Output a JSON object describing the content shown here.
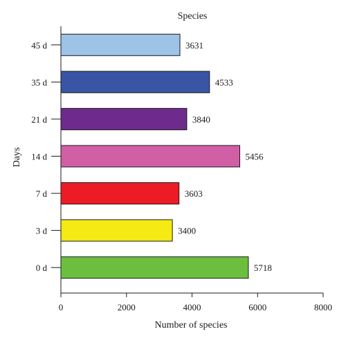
{
  "chart_data": {
    "type": "bar",
    "orientation": "horizontal",
    "title": "Species",
    "xlabel": "Number of species",
    "ylabel": "Days",
    "categories": [
      "45 d",
      "35 d",
      "21 d",
      "14 d",
      "7 d",
      "3 d",
      "0 d"
    ],
    "values": [
      3631,
      4533,
      3840,
      5456,
      3603,
      3400,
      5718
    ],
    "colors": [
      "#9dc3e6",
      "#3b55a5",
      "#6f2a8e",
      "#d05fa6",
      "#ed1c24",
      "#f5ea14",
      "#6cbf3e"
    ],
    "xlim": [
      0,
      8000
    ],
    "xticks": [
      "0",
      "2000",
      "4000",
      "6000",
      "8000"
    ],
    "grid": false,
    "data_labels": true
  }
}
